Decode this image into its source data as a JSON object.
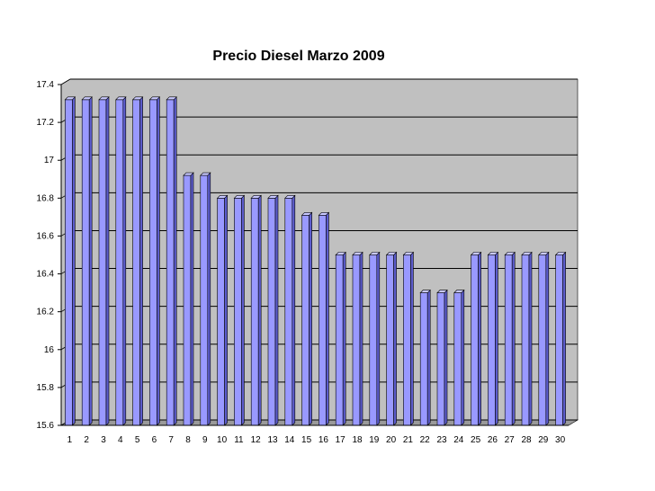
{
  "chart_data": {
    "type": "bar",
    "title": "Precio Diesel Marzo 2009",
    "xlabel": "",
    "ylabel": "",
    "categories": [
      "1",
      "2",
      "3",
      "4",
      "5",
      "6",
      "7",
      "8",
      "9",
      "10",
      "11",
      "12",
      "13",
      "14",
      "15",
      "16",
      "17",
      "18",
      "19",
      "20",
      "21",
      "22",
      "23",
      "24",
      "25",
      "26",
      "27",
      "28",
      "29",
      "30"
    ],
    "values": [
      17.32,
      17.32,
      17.32,
      17.32,
      17.32,
      17.32,
      17.32,
      16.92,
      16.92,
      16.8,
      16.8,
      16.8,
      16.8,
      16.8,
      16.71,
      16.71,
      16.5,
      16.5,
      16.5,
      16.5,
      16.5,
      16.3,
      16.3,
      16.3,
      16.5,
      16.5,
      16.5,
      16.5,
      16.5,
      16.5
    ],
    "ylim": [
      15.6,
      17.4
    ],
    "yticks": [
      "15.6",
      "15.8",
      "16",
      "16.2",
      "16.4",
      "16.6",
      "16.8",
      "17",
      "17.2",
      "17.4"
    ],
    "grid": true,
    "legend": "none",
    "colors": {
      "bar_front": "#9999ff",
      "bar_side": "#5c5ccc",
      "bar_top": "#c8c8ff",
      "plot_bg": "#c0c0c0",
      "gridline": "#000000"
    }
  }
}
